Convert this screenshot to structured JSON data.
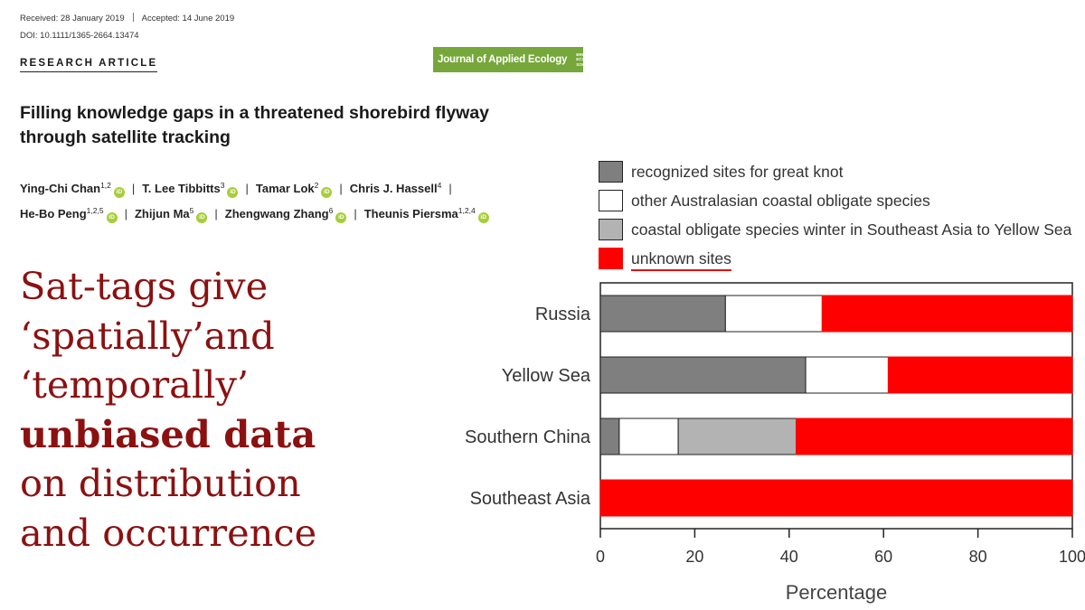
{
  "paper": {
    "received": "Received: 28 January 2019",
    "accepted": "Accepted: 14 June 2019",
    "doi": "DOI: 10.1111/1365-2664.13474",
    "article_type": "RESEARCH ARTICLE",
    "journal": {
      "name": "Journal of Applied Ecology",
      "society_lines": [
        "BRITISH",
        "ECOLOGICAL",
        "SOCIETY"
      ],
      "color": "#76a73a"
    },
    "title_lines": [
      "Filling knowledge gaps in a threatened shorebird flyway",
      "through satellite tracking"
    ],
    "authors": [
      {
        "name": "Ying-Chi Chan",
        "aff": "1,2",
        "orcid": true
      },
      {
        "name": "T. Lee Tibbitts",
        "aff": "3",
        "orcid": true
      },
      {
        "name": "Tamar Lok",
        "aff": "2",
        "orcid": true
      },
      {
        "name": "Chris J. Hassell",
        "aff": "4",
        "orcid": false
      },
      {
        "name": "He-Bo Peng",
        "aff": "1,2,5",
        "orcid": true
      },
      {
        "name": "Zhijun Ma",
        "aff": "5",
        "orcid": true
      },
      {
        "name": "Zhengwang Zhang",
        "aff": "6",
        "orcid": true
      },
      {
        "name": "Theunis Piersma",
        "aff": "1,2,4",
        "orcid": true
      }
    ],
    "orcid_label": "iD",
    "orcid_color": "#a6ce39"
  },
  "overlay": {
    "lines": [
      {
        "text": "Sat-tags give",
        "bold": false
      },
      {
        "text": "‘spatially’and",
        "bold": false
      },
      {
        "text": "‘temporally’",
        "bold": false
      },
      {
        "text": "unbiased data",
        "bold": true
      },
      {
        "text": "on distribution",
        "bold": false
      },
      {
        "text": "and occurrence",
        "bold": false
      }
    ],
    "color": "#8b1111"
  },
  "chart_data": {
    "type": "bar",
    "orientation": "horizontal",
    "stacked": true,
    "categories": [
      "Russia",
      "Yellow Sea",
      "Southern China",
      "Southeast Asia"
    ],
    "series": [
      {
        "name": "recognized sites for great knot",
        "color": "#7f7f7f",
        "values": [
          26.5,
          43.5,
          4,
          0
        ]
      },
      {
        "name": "other Australasian coastal obligate species",
        "color": "#ffffff",
        "values": [
          20.5,
          17.5,
          12.5,
          0
        ]
      },
      {
        "name": "coastal obligate species winter in Southeast Asia to Yellow Sea",
        "color": "#b3b3b3",
        "values": [
          0,
          0,
          25,
          0
        ]
      },
      {
        "name": "unknown sites",
        "color": "#ff0000",
        "values": [
          53,
          39,
          58.5,
          100
        ]
      }
    ],
    "xlabel": "Percentage",
    "ylabel": "",
    "xlim": [
      0,
      100
    ],
    "xticks": [
      0,
      20,
      40,
      60,
      80,
      100
    ],
    "grid": false,
    "legend": "top"
  }
}
